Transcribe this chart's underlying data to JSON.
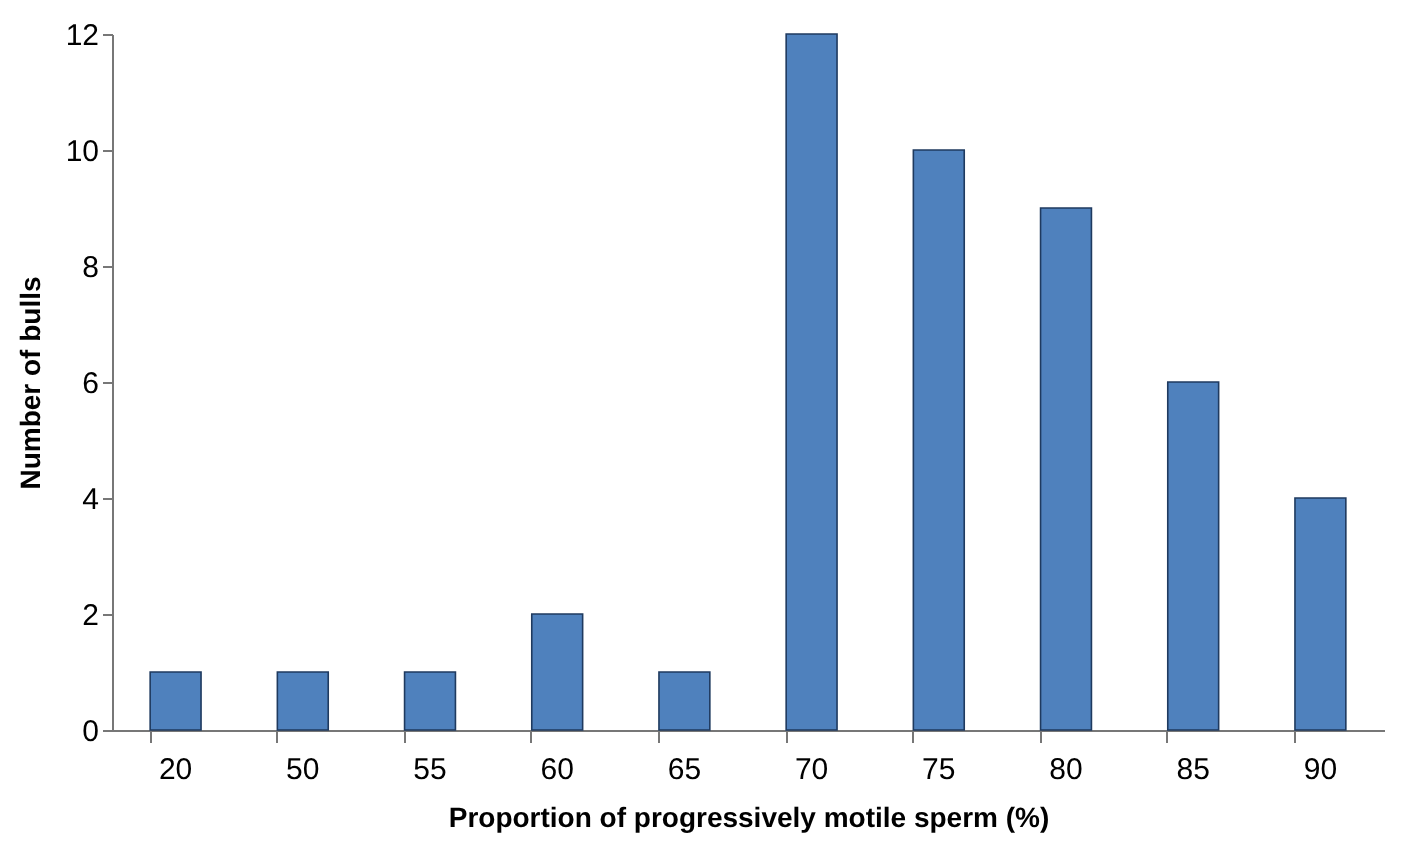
{
  "chart_data": {
    "type": "bar",
    "xlabel": "Proportion of progressively motile sperm (%)",
    "ylabel": "Number of bulls",
    "categories": [
      "20",
      "50",
      "55",
      "60",
      "65",
      "70",
      "75",
      "80",
      "85",
      "90"
    ],
    "values": [
      1,
      1,
      1,
      2,
      1,
      12,
      10,
      9,
      6,
      4
    ],
    "color": "#4f81bd",
    "ylim": [
      0,
      12
    ],
    "yticks": [
      0,
      2,
      4,
      6,
      8,
      10,
      12
    ],
    "grid": false
  }
}
